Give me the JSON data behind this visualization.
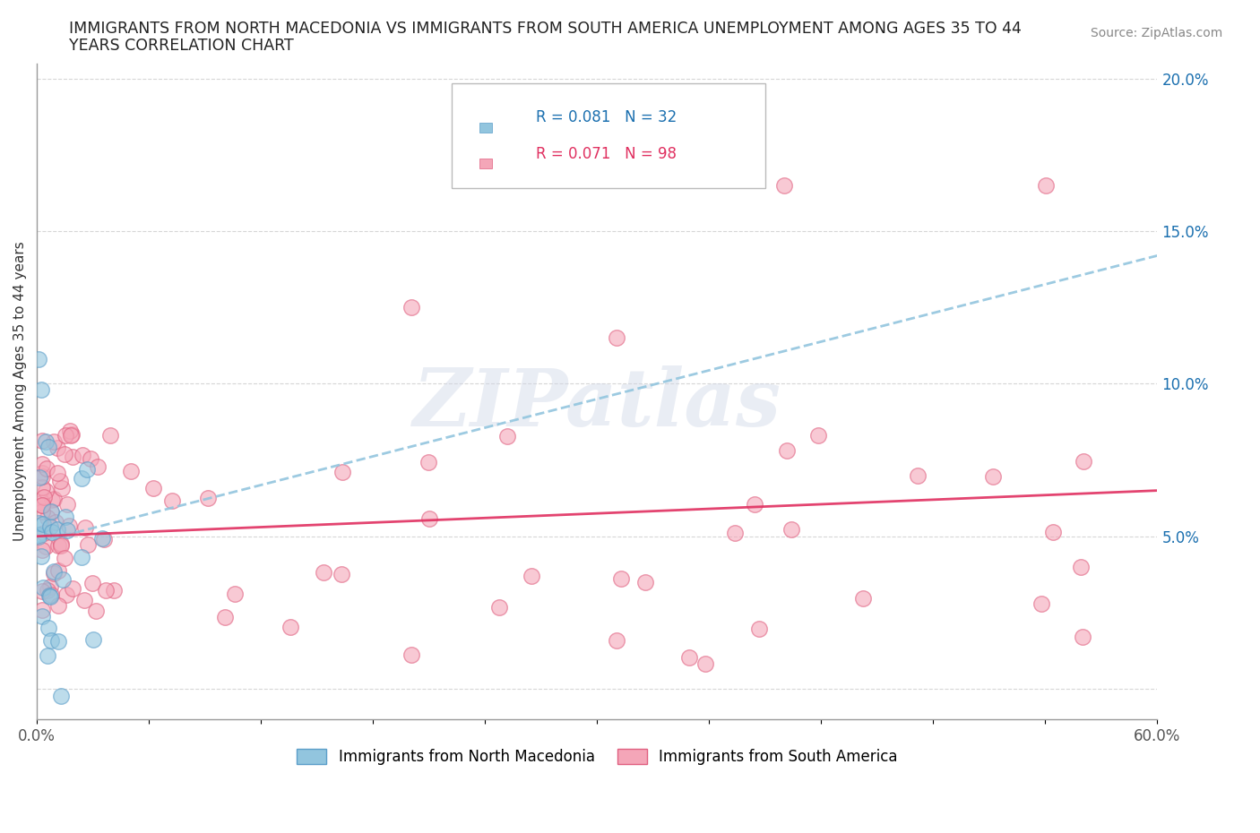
{
  "title_line1": "IMMIGRANTS FROM NORTH MACEDONIA VS IMMIGRANTS FROM SOUTH AMERICA UNEMPLOYMENT AMONG AGES 35 TO 44",
  "title_line2": "YEARS CORRELATION CHART",
  "source": "Source: ZipAtlas.com",
  "ylabel": "Unemployment Among Ages 35 to 44 years",
  "xlim": [
    0.0,
    0.6
  ],
  "ylim": [
    -0.01,
    0.205
  ],
  "xticks": [
    0.0,
    0.06,
    0.12,
    0.18,
    0.24,
    0.3,
    0.36,
    0.42,
    0.48,
    0.54,
    0.6
  ],
  "yticks": [
    0.0,
    0.05,
    0.1,
    0.15,
    0.2
  ],
  "color_blue": "#92c5de",
  "color_blue_edge": "#5b9ec9",
  "color_pink": "#f4a6b8",
  "color_pink_edge": "#e06080",
  "color_blue_dark": "#1a6faf",
  "color_pink_dark": "#e03060",
  "color_trendline_blue": "#92c5de",
  "color_trendline_pink": "#e03060",
  "watermark": "ZIPatlas",
  "trendline1_y_start": 0.048,
  "trendline1_y_end": 0.142,
  "trendline2_y_start": 0.05,
  "trendline2_y_end": 0.065,
  "background_color": "#ffffff",
  "grid_color": "#cccccc",
  "legend_r1": "R = 0.081",
  "legend_n1": "N = 32",
  "legend_r2": "R = 0.071",
  "legend_n2": "N = 98",
  "legend_color1": "#1a6faf",
  "legend_color2": "#e03060",
  "series1_label": "Immigrants from North Macedonia",
  "series2_label": "Immigrants from South America"
}
